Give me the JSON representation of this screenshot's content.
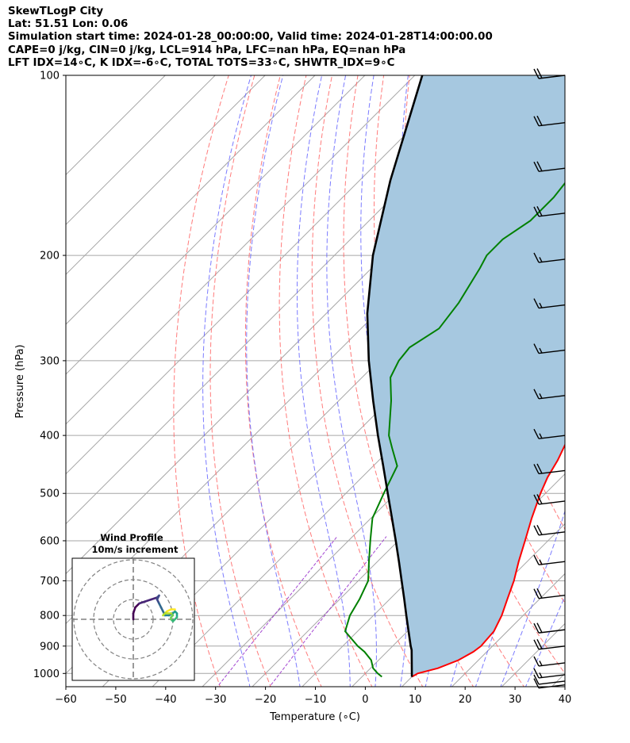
{
  "header": {
    "line1": "SkewTLogP City",
    "line2": "Lat: 51.51   Lon: 0.06",
    "line3": "Simulation start time: 2024-01-28_00:00:00, Valid time: 2024-01-28T14:00:00.00",
    "line4": "CAPE=0 j/kg, CIN=0 j/kg, LCL=914 hPa, LFC=nan hPa, EQ=nan hPa",
    "line5": "LFT IDX=14∘C, K IDX=-6∘C, TOTAL TOTS=33∘C, SHWTR_IDX=9∘C"
  },
  "chart_data": {
    "type": "line",
    "subtype": "skew-T log-P",
    "xlabel": "Temperature (∘C)",
    "ylabel": "Pressure (hPa)",
    "xlim": [
      -60,
      40
    ],
    "ylim": [
      1050,
      100
    ],
    "x_ticks": [
      "−60",
      "−50",
      "−40",
      "−30",
      "−20",
      "−10",
      "0",
      "10",
      "20",
      "30",
      "40"
    ],
    "x_tick_values": [
      -60,
      -50,
      -40,
      -30,
      -20,
      -10,
      0,
      10,
      20,
      30,
      40
    ],
    "y_ticks": [
      "100",
      "200",
      "300",
      "400",
      "500",
      "600",
      "700",
      "800",
      "900",
      "1000"
    ],
    "y_tick_values": [
      100,
      200,
      300,
      400,
      500,
      600,
      700,
      800,
      900,
      1000
    ],
    "y_scale": "log",
    "grid": true,
    "colors": {
      "temperature": "#ff0000",
      "dewpoint": "#008000",
      "parcel": "#000000",
      "shading": "#a6c8e0",
      "dry_adiabats": "#ff6464",
      "moist_adiabats": "#6464ff",
      "mixing_ratio": "#9932cc",
      "isotherms": "#a6a6a6"
    },
    "series": [
      {
        "role": "temperature",
        "points": [
          [
            1013,
            10.0
          ],
          [
            1000,
            10.5
          ],
          [
            980,
            13.5
          ],
          [
            950,
            16.0
          ],
          [
            920,
            17.3
          ],
          [
            900,
            17.7
          ],
          [
            850,
            17.3
          ],
          [
            800,
            15.7
          ],
          [
            750,
            13.5
          ],
          [
            700,
            11.2
          ],
          [
            650,
            8.3
          ],
          [
            600,
            5.4
          ],
          [
            550,
            2.2
          ],
          [
            500,
            -1.0
          ],
          [
            470,
            -2.8
          ],
          [
            440,
            -4.2
          ],
          [
            400,
            -6.8
          ],
          [
            350,
            -10.6
          ],
          [
            300,
            -15.5
          ],
          [
            270,
            -19.4
          ],
          [
            250,
            -22.4
          ],
          [
            220,
            -27.4
          ],
          [
            200,
            -31.2
          ],
          [
            186,
            -33.2
          ],
          [
            175,
            -31.9
          ],
          [
            165,
            -30.3
          ],
          [
            150,
            -30.7
          ],
          [
            135,
            -32.4
          ],
          [
            120,
            -35.4
          ],
          [
            108,
            -39.8
          ],
          [
            100,
            -43.1
          ]
        ]
      },
      {
        "role": "dewpoint",
        "points": [
          [
            1013,
            4.0
          ],
          [
            1000,
            2.5
          ],
          [
            980,
            0.5
          ],
          [
            950,
            -1.5
          ],
          [
            920,
            -4.5
          ],
          [
            900,
            -7.0
          ],
          [
            850,
            -12.5
          ],
          [
            800,
            -14.7
          ],
          [
            750,
            -16.1
          ],
          [
            700,
            -18.0
          ],
          [
            650,
            -21.7
          ],
          [
            600,
            -25.6
          ],
          [
            550,
            -29.7
          ],
          [
            500,
            -32.4
          ],
          [
            450,
            -35.2
          ],
          [
            420,
            -39.8
          ],
          [
            400,
            -43.0
          ],
          [
            350,
            -49.5
          ],
          [
            320,
            -54.3
          ],
          [
            300,
            -56.0
          ],
          [
            285,
            -56.5
          ],
          [
            265,
            -54.4
          ],
          [
            240,
            -55.6
          ],
          [
            210,
            -58.3
          ],
          [
            200,
            -59.5
          ],
          [
            188,
            -59.5
          ],
          [
            175,
            -57.7
          ],
          [
            160,
            -57.7
          ],
          [
            150,
            -58.4
          ],
          [
            135,
            -62.7
          ],
          [
            120,
            -63.4
          ],
          [
            100,
            -62.0
          ]
        ]
      },
      {
        "role": "parcel",
        "points": [
          [
            1013,
            10.0
          ],
          [
            914,
            4.6
          ],
          [
            900,
            3.6
          ],
          [
            850,
            0.2
          ],
          [
            800,
            -3.4
          ],
          [
            750,
            -7.2
          ],
          [
            700,
            -11.3
          ],
          [
            650,
            -15.7
          ],
          [
            600,
            -20.5
          ],
          [
            550,
            -25.8
          ],
          [
            500,
            -31.6
          ],
          [
            450,
            -38.0
          ],
          [
            400,
            -45.2
          ],
          [
            350,
            -53.1
          ],
          [
            300,
            -62.0
          ],
          [
            250,
            -71.8
          ],
          [
            200,
            -82.3
          ],
          [
            150,
            -93.8
          ],
          [
            100,
            -108.5
          ]
        ]
      }
    ],
    "wind_barbs": [
      {
        "p": 100,
        "full": 2,
        "half": 0
      },
      {
        "p": 120,
        "full": 2,
        "half": 0
      },
      {
        "p": 143,
        "full": 2,
        "half": 0
      },
      {
        "p": 170,
        "full": 2,
        "half": 0
      },
      {
        "p": 203,
        "full": 1,
        "half": 1
      },
      {
        "p": 242,
        "full": 1,
        "half": 1
      },
      {
        "p": 288,
        "full": 1,
        "half": 1
      },
      {
        "p": 343,
        "full": 1,
        "half": 1
      },
      {
        "p": 400,
        "full": 1,
        "half": 1
      },
      {
        "p": 458,
        "full": 2,
        "half": 0
      },
      {
        "p": 515,
        "full": 2,
        "half": 0
      },
      {
        "p": 580,
        "full": 2,
        "half": 0
      },
      {
        "p": 650,
        "full": 1,
        "half": 1
      },
      {
        "p": 740,
        "full": 2,
        "half": 0
      },
      {
        "p": 845,
        "full": 2,
        "half": 0
      },
      {
        "p": 900,
        "full": 2,
        "half": 0
      },
      {
        "p": 960,
        "full": 1,
        "half": 1
      },
      {
        "p": 1005,
        "full": 1,
        "half": 1
      },
      {
        "p": 1030,
        "full": 1,
        "half": 0
      },
      {
        "p": 1045,
        "full": 1,
        "half": 0
      }
    ],
    "hodograph": {
      "title": "Wind Profile",
      "subtitle": "10m/s increment",
      "rings": [
        10,
        20,
        30
      ],
      "points": [
        [
          0,
          0
        ],
        [
          0,
          3
        ],
        [
          1,
          6
        ],
        [
          3,
          8
        ],
        [
          6,
          9
        ],
        [
          9,
          10
        ],
        [
          12,
          11
        ],
        [
          13,
          12
        ],
        [
          12,
          10
        ],
        [
          13,
          8
        ],
        [
          14,
          6
        ],
        [
          15,
          4
        ],
        [
          16,
          2
        ],
        [
          18,
          2
        ],
        [
          20,
          3
        ],
        [
          21,
          4
        ],
        [
          22,
          3
        ],
        [
          22,
          1
        ],
        [
          21,
          0
        ],
        [
          20,
          -1
        ],
        [
          19,
          0
        ],
        [
          19,
          1
        ],
        [
          20,
          2
        ],
        [
          19,
          3
        ],
        [
          16,
          3
        ],
        [
          15,
          2
        ],
        [
          17,
          4
        ],
        [
          19,
          5
        ],
        [
          21,
          5
        ]
      ]
    }
  }
}
